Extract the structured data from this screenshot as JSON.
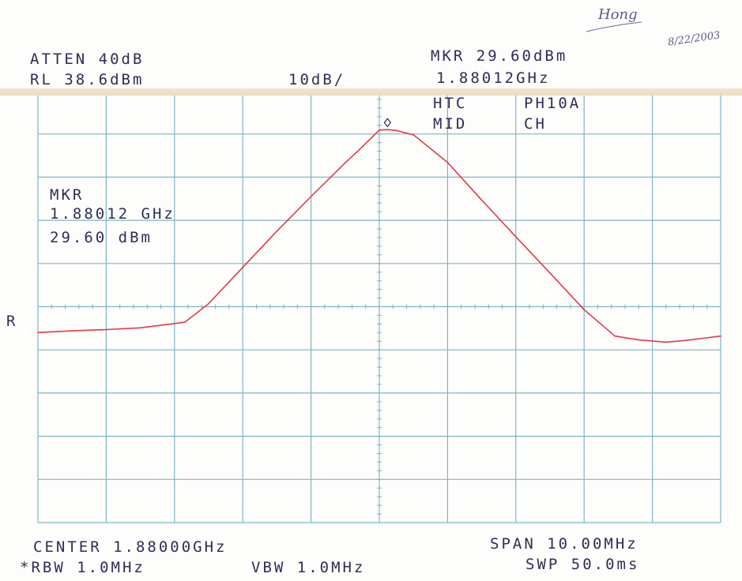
{
  "annotations": {
    "atten": "ATTEN 40dB",
    "ref_level": "RL 38.6dBm",
    "scale": "10dB/",
    "marker_top_level": "MKR 29.60dBm",
    "marker_top_freq": "1.88012GHz",
    "label_htc": "HTC",
    "label_ph10a": "PH10A",
    "label_mid": "MID",
    "label_ch": "CH",
    "marker_box_title": "MKR",
    "marker_box_freq": "1.88012 GHz",
    "marker_box_level": "29.60 dBm",
    "left_indicator": "R",
    "center": "CENTER 1.88000GHz",
    "span": "SPAN 10.00MHz",
    "rbw": "*RBW 1.0MHz",
    "vbw": "VBW 1.0MHz",
    "sweep": "SWP 50.0ms",
    "handwritten_name": "Hong",
    "handwritten_date": "8/22/2003"
  },
  "colors": {
    "trace": "#e23a46",
    "grid": "#7fb5c4",
    "text": "#2e2e55",
    "paper": "#fdfdfb"
  },
  "chart_data": {
    "type": "line",
    "x_unit": "GHz",
    "y_unit": "dBm",
    "xlim": [
      1.875,
      1.885
    ],
    "ylim": [
      -61.4,
      38.6
    ],
    "grid": true,
    "marker": {
      "x": 1.88012,
      "y": 29.6
    },
    "series": [
      {
        "x": [
          1.875,
          1.8755,
          1.876,
          1.8765,
          1.87715,
          1.8775,
          1.878,
          1.8785,
          1.879,
          1.8795,
          1.87975,
          1.88,
          1.88012,
          1.88025,
          1.8805,
          1.881,
          1.8815,
          1.882,
          1.8825,
          1.883,
          1.88345,
          1.8838,
          1.8842,
          1.8845,
          1.885
        ],
        "y": [
          -17.4,
          -17.0,
          -16.7,
          -16.3,
          -15.0,
          -10.7,
          -2.3,
          6.1,
          14.1,
          21.9,
          25.6,
          29.5,
          29.6,
          29.4,
          28.4,
          22.0,
          13.3,
          4.8,
          -3.6,
          -12.1,
          -18.2,
          -19.1,
          -19.6,
          -19.2,
          -18.2
        ]
      }
    ]
  }
}
